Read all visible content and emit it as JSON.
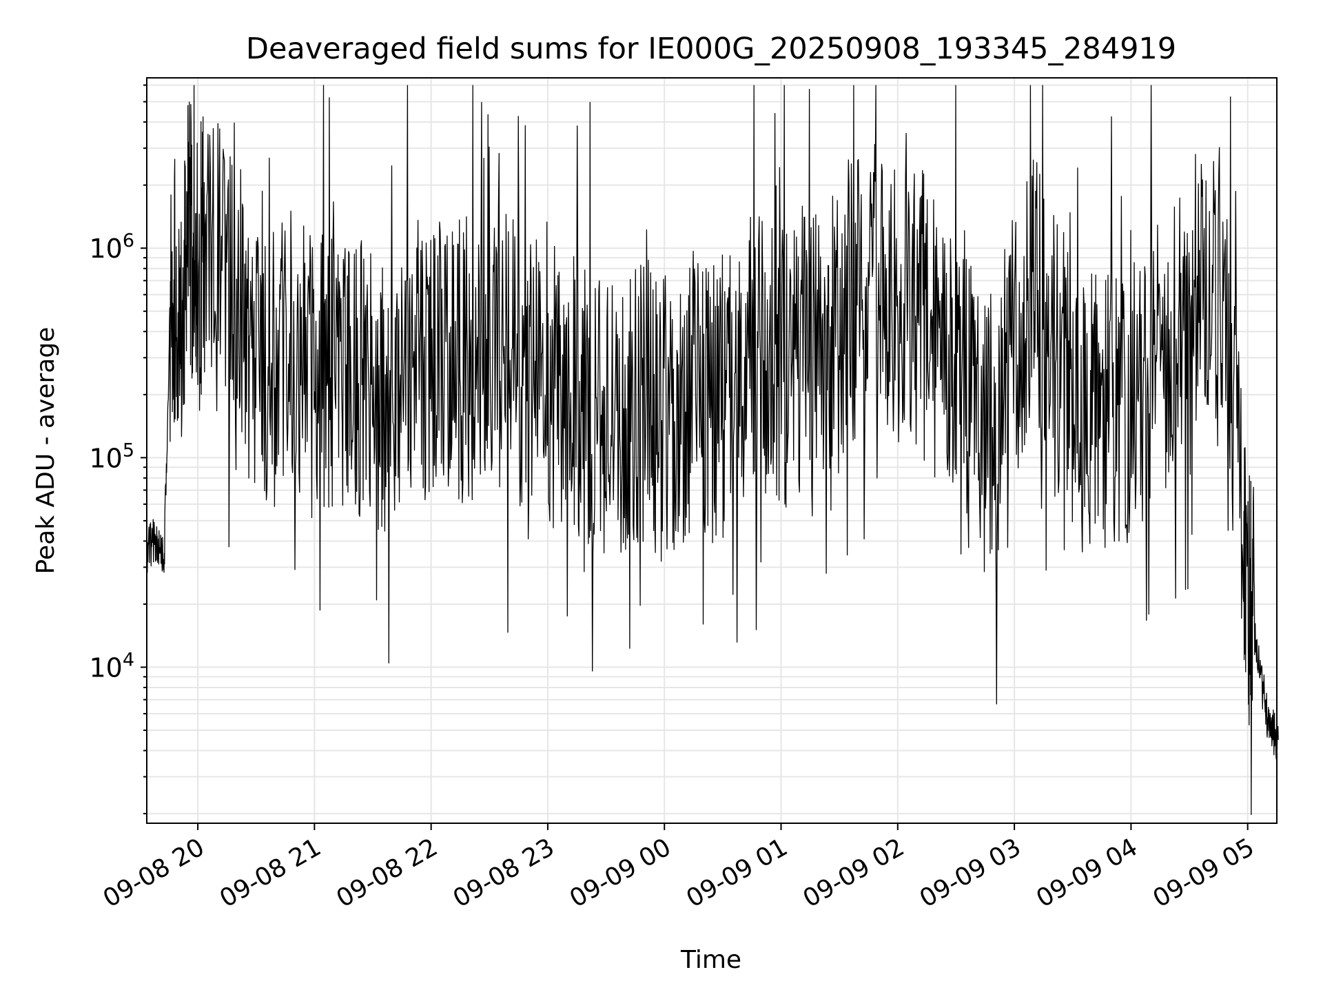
{
  "chart_data": {
    "type": "line",
    "title": "Deaveraged field sums for IE000G_20250908_193345_284919",
    "xlabel": "Time",
    "ylabel": "Peak ADU - average",
    "yscale": "log",
    "xlim": [
      "2025-09-08 19:33:45",
      "2025-09-09 05:15:00"
    ],
    "ylim": [
      1800,
      6500000
    ],
    "grid": true,
    "line_color": "#000000",
    "grid_color": "#e6e6e6",
    "x_ticks": [
      {
        "label": "09-08 20",
        "hours_from_start": 0.4375
      },
      {
        "label": "09-08 21",
        "hours_from_start": 1.4375
      },
      {
        "label": "09-08 22",
        "hours_from_start": 2.4375
      },
      {
        "label": "09-08 23",
        "hours_from_start": 3.4375
      },
      {
        "label": "09-09 00",
        "hours_from_start": 4.4375
      },
      {
        "label": "09-09 01",
        "hours_from_start": 5.4375
      },
      {
        "label": "09-09 02",
        "hours_from_start": 6.4375
      },
      {
        "label": "09-09 03",
        "hours_from_start": 7.4375
      },
      {
        "label": "09-09 04",
        "hours_from_start": 8.4375
      },
      {
        "label": "09-09 05",
        "hours_from_start": 9.4375
      }
    ],
    "y_ticks": [
      {
        "base": "10",
        "exp": "4",
        "value": 10000
      },
      {
        "base": "10",
        "exp": "5",
        "value": 100000
      },
      {
        "base": "10",
        "exp": "6",
        "value": 1000000
      }
    ],
    "series": [
      {
        "name": "Peak ADU - average",
        "x_hours_from_start": [
          0.0,
          0.05,
          0.1,
          0.15,
          0.2,
          0.25,
          0.3,
          0.35,
          0.4,
          0.45,
          0.5,
          0.6,
          0.7,
          0.8,
          0.9,
          1.0,
          1.1,
          1.2,
          1.3,
          1.4,
          1.5,
          1.6,
          1.7,
          1.8,
          1.9,
          2.0,
          2.1,
          2.2,
          2.3,
          2.4,
          2.5,
          2.6,
          2.7,
          2.8,
          2.9,
          3.0,
          3.1,
          3.2,
          3.3,
          3.4,
          3.5,
          3.6,
          3.7,
          3.8,
          3.9,
          4.0,
          4.1,
          4.2,
          4.3,
          4.4,
          4.5,
          4.6,
          4.7,
          4.8,
          4.9,
          5.0,
          5.1,
          5.2,
          5.3,
          5.4,
          5.5,
          5.6,
          5.7,
          5.8,
          5.9,
          6.0,
          6.1,
          6.2,
          6.3,
          6.4,
          6.5,
          6.6,
          6.7,
          6.8,
          6.9,
          7.0,
          7.1,
          7.2,
          7.3,
          7.4,
          7.5,
          7.6,
          7.7,
          7.8,
          7.9,
          8.0,
          8.1,
          8.2,
          8.3,
          8.4,
          8.5,
          8.6,
          8.7,
          8.8,
          8.9,
          9.0,
          9.1,
          9.2,
          9.3,
          9.4,
          9.45,
          9.5,
          9.55,
          9.6,
          9.65,
          9.7
        ],
        "values": [
          35000,
          40000,
          38000,
          34000,
          500000,
          800000,
          600000,
          1100000,
          900000,
          750000,
          1000000,
          800000,
          900000,
          500000,
          350000,
          300000,
          280000,
          320000,
          300000,
          250000,
          280000,
          260000,
          300000,
          240000,
          220000,
          180000,
          200000,
          250000,
          300000,
          220000,
          280000,
          260000,
          300000,
          280000,
          250000,
          320000,
          300000,
          280000,
          250000,
          230000,
          220000,
          240000,
          200000,
          180000,
          160000,
          170000,
          150000,
          180000,
          160000,
          150000,
          170000,
          180000,
          200000,
          180000,
          170000,
          250000,
          300000,
          350000,
          330000,
          300000,
          280000,
          320000,
          350000,
          400000,
          450000,
          550000,
          600000,
          700000,
          650000,
          600000,
          550000,
          500000,
          450000,
          350000,
          300000,
          280000,
          200000,
          150000,
          140000,
          300000,
          500000,
          550000,
          450000,
          300000,
          250000,
          200000,
          180000,
          160000,
          170000,
          190000,
          200000,
          250000,
          300000,
          350000,
          400000,
          700000,
          750000,
          700000,
          200000,
          60000,
          25000,
          15000,
          9000,
          6000,
          5000,
          4500
        ]
      }
    ]
  }
}
